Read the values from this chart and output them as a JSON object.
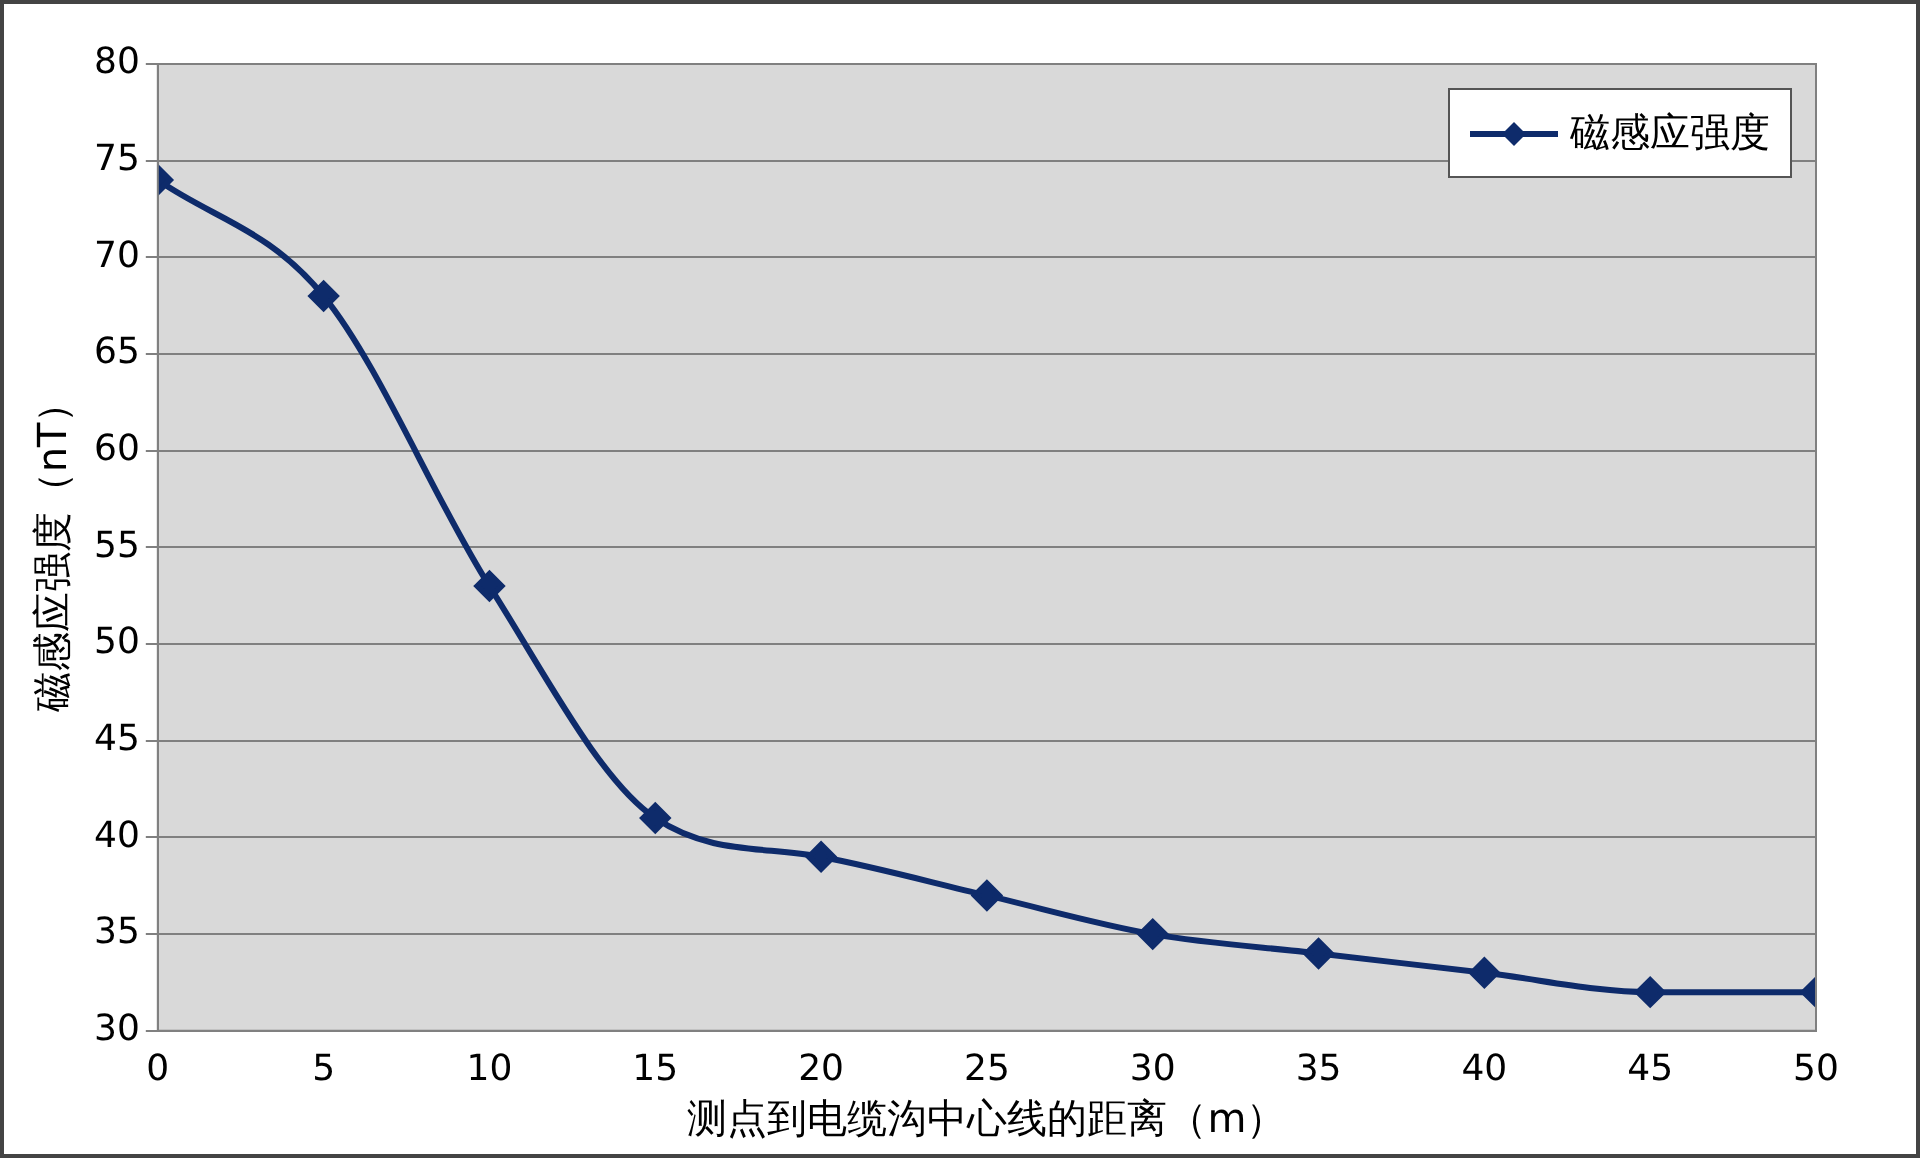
{
  "chart_data": {
    "type": "line",
    "xlabel": "测点到电缆沟中心线的距离（m）",
    "ylabel": "磁感应强度（nT）",
    "x": [
      0,
      5,
      10,
      15,
      20,
      25,
      30,
      35,
      40,
      45,
      50
    ],
    "series": [
      {
        "name": "磁感应强度",
        "color": "#0e2b6b",
        "values": [
          74,
          68,
          53,
          41,
          39,
          37,
          35,
          34,
          33,
          32,
          32
        ]
      }
    ],
    "xlim": [
      0,
      50
    ],
    "xticks": [
      0,
      5,
      10,
      15,
      20,
      25,
      30,
      35,
      40,
      45,
      50
    ],
    "ylim": [
      30,
      80
    ],
    "yticks": [
      30,
      35,
      40,
      45,
      50,
      55,
      60,
      65,
      70,
      75,
      80
    ],
    "grid": "y",
    "legend": "top right",
    "marker": "diamond",
    "line_style": "solid"
  }
}
